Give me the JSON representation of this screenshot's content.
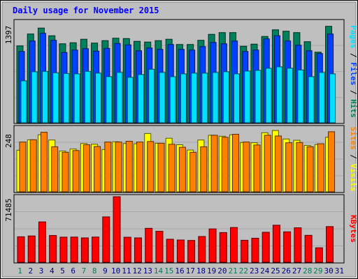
{
  "title": "Daily usage for November 2015",
  "colors": {
    "background": "#bfbfbf",
    "title": "#0000ff",
    "hits": "#00805c",
    "files": "#0040ff",
    "pages": "#00e0ff",
    "visits": "#ffff00",
    "sites": "#ff8000",
    "kbytes": "#ff0000",
    "weekend_label": "#00805c",
    "weekday_label": "#000080"
  },
  "chart_data": [
    {
      "type": "bar",
      "title": "Daily usage for November 2015",
      "panel": "hits-files-pages",
      "ymax_label": "1397",
      "ylim": [
        0,
        1397
      ],
      "categories": [
        "1",
        "2",
        "3",
        "4",
        "5",
        "6",
        "7",
        "8",
        "9",
        "10",
        "11",
        "12",
        "13",
        "14",
        "15",
        "16",
        "17",
        "18",
        "19",
        "20",
        "21",
        "22",
        "23",
        "24",
        "25",
        "26",
        "27",
        "28",
        "29",
        "30",
        "31"
      ],
      "weekend_days": [
        "1",
        "7",
        "8",
        "14",
        "15",
        "21",
        "22",
        "28",
        "29"
      ],
      "legend": [
        "Pages",
        "Files",
        "Hits"
      ],
      "series": [
        {
          "name": "Hits",
          "values": [
            1100,
            1270,
            1355,
            1245,
            1130,
            1145,
            1195,
            1140,
            1175,
            1210,
            1205,
            1165,
            1155,
            1175,
            1195,
            1120,
            1120,
            1180,
            1265,
            1290,
            1290,
            1095,
            1125,
            1235,
            1330,
            1310,
            1290,
            1160,
            1010,
            1380,
            0
          ]
        },
        {
          "name": "Files",
          "values": [
            1020,
            1170,
            1280,
            1180,
            1005,
            1040,
            1060,
            1025,
            1065,
            1135,
            1115,
            1030,
            1070,
            1050,
            1120,
            1050,
            1040,
            1090,
            1150,
            1130,
            1170,
            1020,
            1040,
            1200,
            1245,
            1170,
            1110,
            1030,
            990,
            1270,
            0
          ]
        },
        {
          "name": "Pages",
          "values": [
            600,
            730,
            735,
            715,
            705,
            700,
            735,
            710,
            660,
            720,
            650,
            690,
            765,
            720,
            660,
            700,
            710,
            710,
            720,
            730,
            700,
            740,
            750,
            780,
            800,
            780,
            755,
            660,
            720,
            700,
            0
          ]
        }
      ]
    },
    {
      "type": "bar",
      "panel": "visits-sites",
      "ymax_label": "248",
      "ylim": [
        0,
        248
      ],
      "categories": [
        "1",
        "2",
        "3",
        "4",
        "5",
        "6",
        "7",
        "8",
        "9",
        "10",
        "11",
        "12",
        "13",
        "14",
        "15",
        "16",
        "17",
        "18",
        "19",
        "20",
        "21",
        "22",
        "23",
        "24",
        "25",
        "26",
        "27",
        "28",
        "29",
        "30",
        "31"
      ],
      "legend": [
        "Sites",
        "Visits"
      ],
      "series": [
        {
          "name": "Visits",
          "values": [
            166,
            208,
            228,
            207,
            163,
            171,
            193,
            190,
            169,
            200,
            193,
            192,
            233,
            194,
            214,
            188,
            167,
            207,
            226,
            222,
            228,
            197,
            196,
            236,
            245,
            211,
            206,
            185,
            189,
            218,
            0
          ]
        },
        {
          "name": "Sites",
          "values": [
            199,
            208,
            238,
            180,
            158,
            165,
            188,
            181,
            199,
            199,
            202,
            199,
            201,
            194,
            190,
            178,
            158,
            180,
            226,
            218,
            230,
            199,
            187,
            226,
            223,
            196,
            197,
            180,
            192,
            240,
            0
          ]
        }
      ]
    },
    {
      "type": "bar",
      "panel": "kbytes",
      "ymax_label": "71485",
      "ylim": [
        0,
        71485
      ],
      "categories": [
        "1",
        "2",
        "3",
        "4",
        "5",
        "6",
        "7",
        "8",
        "9",
        "10",
        "11",
        "12",
        "13",
        "14",
        "15",
        "16",
        "17",
        "18",
        "19",
        "20",
        "21",
        "22",
        "23",
        "24",
        "25",
        "26",
        "27",
        "28",
        "29",
        "30",
        "31"
      ],
      "legend": [
        "KBytes"
      ],
      "series": [
        {
          "name": "KBytes",
          "values": [
            27800,
            28700,
            44000,
            29200,
            27400,
            27500,
            26600,
            27500,
            49500,
            71485,
            27300,
            26600,
            37000,
            33800,
            25100,
            24300,
            23800,
            28100,
            36400,
            32400,
            37900,
            24000,
            26200,
            32700,
            40400,
            33200,
            37600,
            29400,
            15800,
            38900,
            0
          ]
        }
      ]
    }
  ]
}
